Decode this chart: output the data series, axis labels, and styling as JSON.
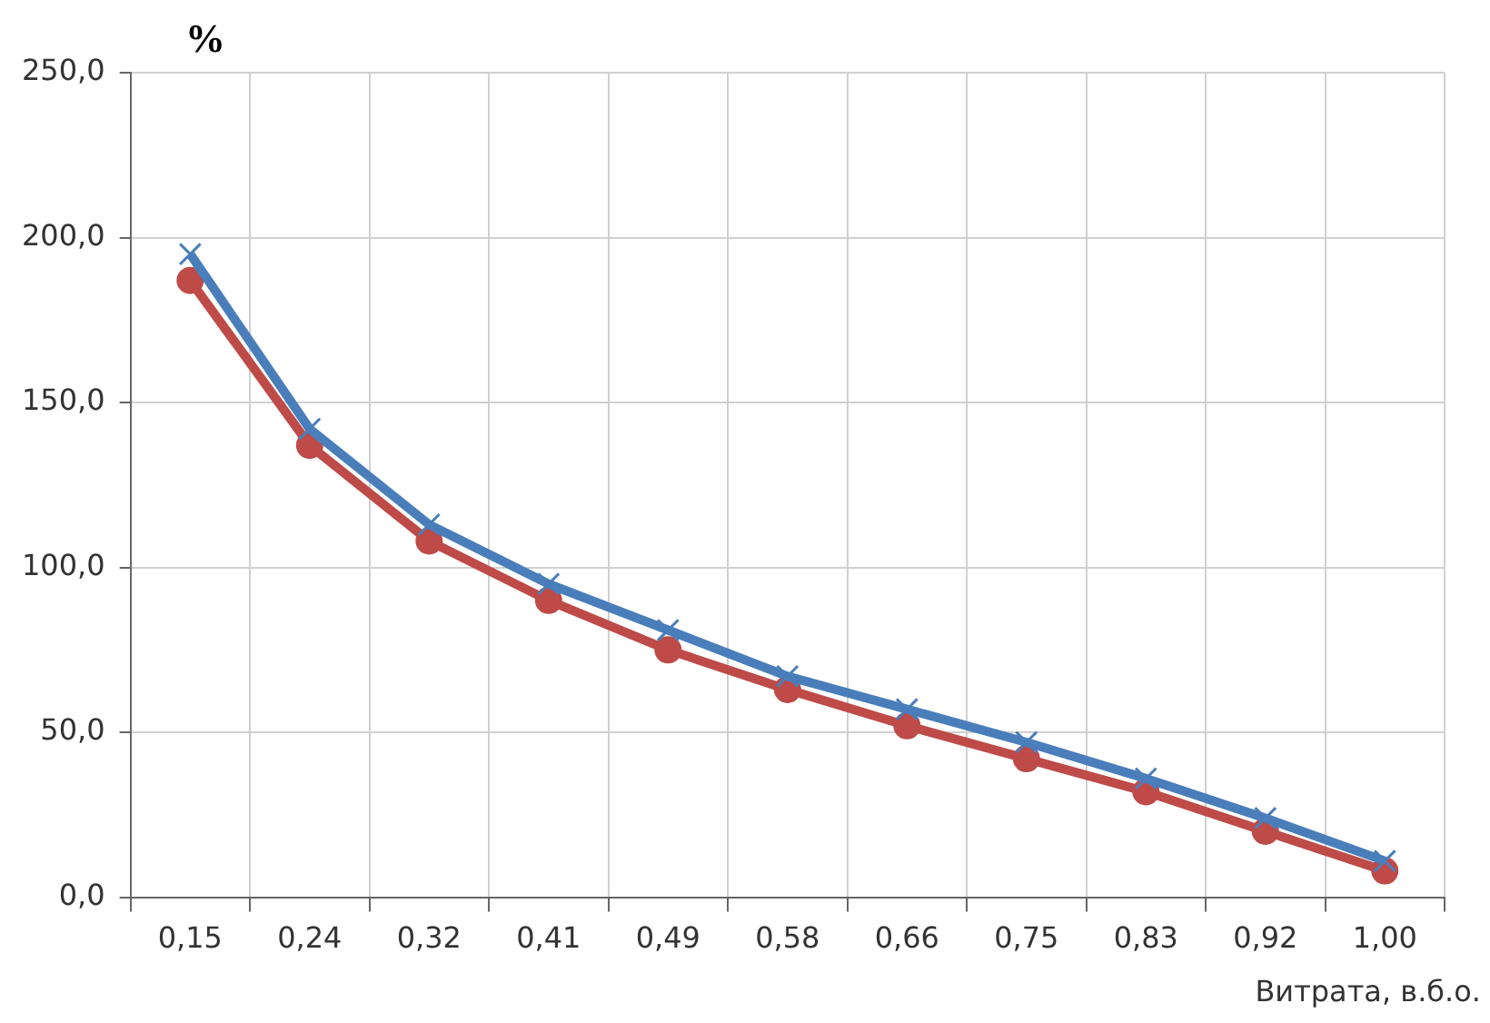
{
  "chart_data": {
    "type": "line",
    "ylabel": "%",
    "xlabel": "Витрата, в.б.о.",
    "categories": [
      "0,15",
      "0,24",
      "0,32",
      "0,41",
      "0,49",
      "0,58",
      "0,66",
      "0,75",
      "0,83",
      "0,92",
      "1,00"
    ],
    "series": [
      {
        "color": "#4a7ebb",
        "marker": "cross",
        "values": [
          195,
          142,
          113,
          95,
          81,
          67,
          57,
          47,
          36,
          24,
          11
        ]
      },
      {
        "color": "#be4b48",
        "marker": "circle",
        "values": [
          187,
          137,
          108,
          90,
          75,
          63,
          52,
          42,
          32,
          20,
          8
        ]
      }
    ],
    "ylim": [
      0,
      250
    ],
    "yticks": [
      {
        "value": 0,
        "label": "0,0"
      },
      {
        "value": 50,
        "label": "50,0"
      },
      {
        "value": 100,
        "label": "100,0"
      },
      {
        "value": 150,
        "label": "150,0"
      },
      {
        "value": 200,
        "label": "200,0"
      },
      {
        "value": 250,
        "label": "250,0"
      }
    ],
    "grid": true,
    "legend": false,
    "line_style": "solid"
  }
}
